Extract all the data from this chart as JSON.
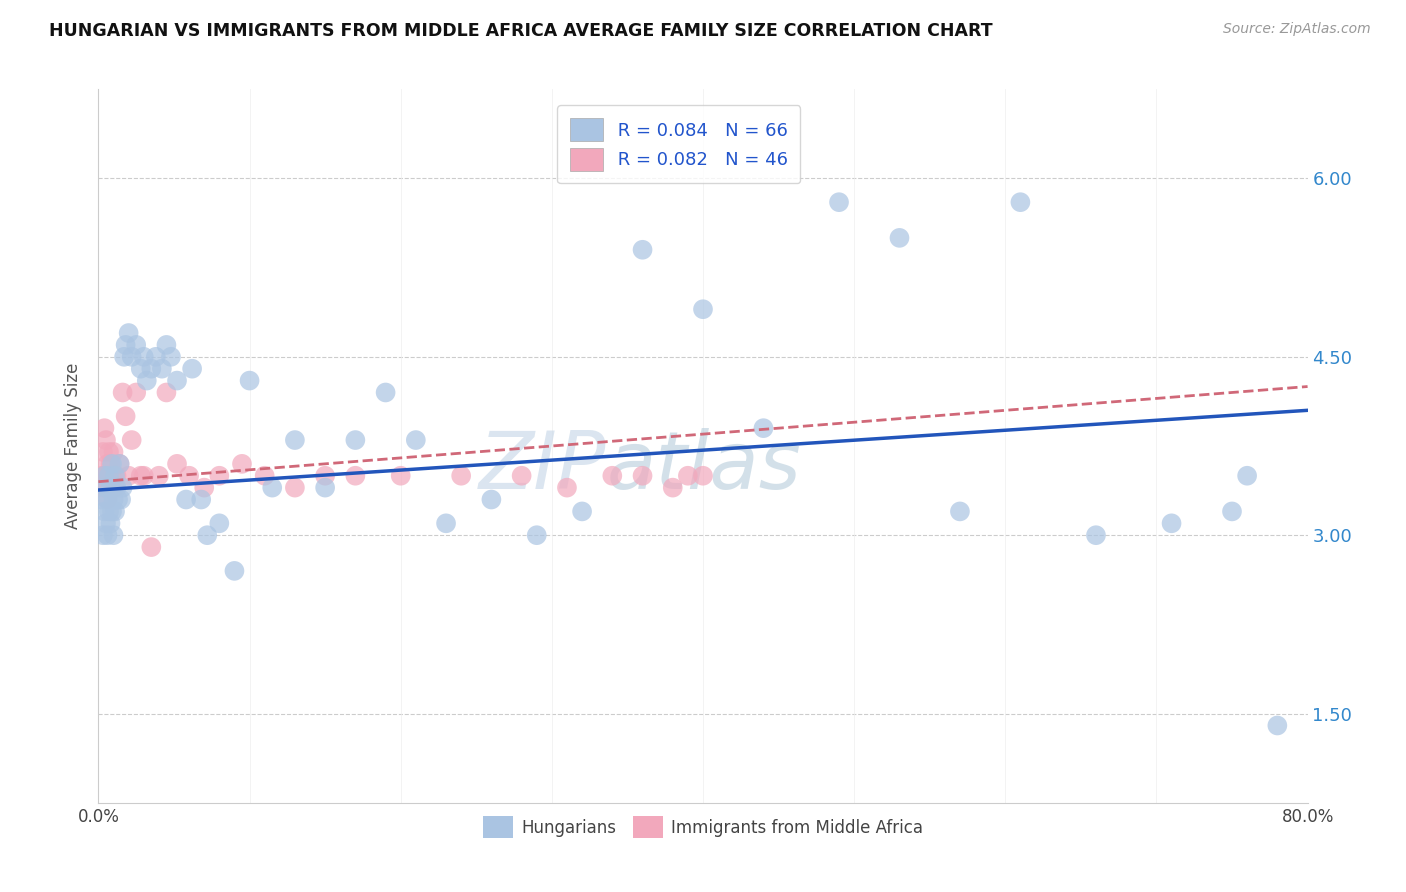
{
  "title": "HUNGARIAN VS IMMIGRANTS FROM MIDDLE AFRICA AVERAGE FAMILY SIZE CORRELATION CHART",
  "source": "Source: ZipAtlas.com",
  "ylabel": "Average Family Size",
  "xmin": 0.0,
  "xmax": 0.8,
  "ymin": 0.75,
  "ymax": 6.75,
  "yticks": [
    1.5,
    3.0,
    4.5,
    6.0
  ],
  "legend_r1": "R = 0.084",
  "legend_n1": "N = 66",
  "legend_r2": "R = 0.082",
  "legend_n2": "N = 46",
  "blue_color": "#aac4e2",
  "pink_color": "#f2a8bc",
  "trend_blue": "#2255bb",
  "trend_pink": "#d06878",
  "watermark_zip": "ZIP",
  "watermark_atlas": "atlas",
  "blue_scatter_x": [
    0.002,
    0.003,
    0.004,
    0.004,
    0.005,
    0.005,
    0.006,
    0.006,
    0.007,
    0.007,
    0.008,
    0.008,
    0.009,
    0.009,
    0.01,
    0.01,
    0.011,
    0.011,
    0.012,
    0.013,
    0.014,
    0.015,
    0.016,
    0.017,
    0.018,
    0.02,
    0.022,
    0.025,
    0.028,
    0.03,
    0.032,
    0.035,
    0.038,
    0.042,
    0.045,
    0.048,
    0.052,
    0.058,
    0.062,
    0.068,
    0.072,
    0.08,
    0.09,
    0.1,
    0.115,
    0.13,
    0.15,
    0.17,
    0.19,
    0.21,
    0.23,
    0.26,
    0.29,
    0.32,
    0.36,
    0.4,
    0.44,
    0.49,
    0.53,
    0.57,
    0.61,
    0.66,
    0.71,
    0.75,
    0.76,
    0.78
  ],
  "blue_scatter_y": [
    3.3,
    3.0,
    3.5,
    3.2,
    3.4,
    3.1,
    3.3,
    3.0,
    3.5,
    3.2,
    3.4,
    3.1,
    3.6,
    3.2,
    3.3,
    3.0,
    3.5,
    3.2,
    3.4,
    3.3,
    3.6,
    3.3,
    3.4,
    4.5,
    4.6,
    4.7,
    4.5,
    4.6,
    4.4,
    4.5,
    4.3,
    4.4,
    4.5,
    4.4,
    4.6,
    4.5,
    4.3,
    3.3,
    4.4,
    3.3,
    3.0,
    3.1,
    2.7,
    4.3,
    3.4,
    3.8,
    3.4,
    3.8,
    4.2,
    3.8,
    3.1,
    3.3,
    3.0,
    3.2,
    5.4,
    4.9,
    3.9,
    5.8,
    5.5,
    3.2,
    5.8,
    3.0,
    3.1,
    3.2,
    3.5,
    1.4
  ],
  "pink_scatter_x": [
    0.002,
    0.003,
    0.003,
    0.004,
    0.004,
    0.005,
    0.005,
    0.006,
    0.006,
    0.007,
    0.007,
    0.008,
    0.008,
    0.009,
    0.01,
    0.011,
    0.012,
    0.014,
    0.016,
    0.018,
    0.02,
    0.022,
    0.025,
    0.028,
    0.03,
    0.035,
    0.04,
    0.045,
    0.052,
    0.06,
    0.07,
    0.08,
    0.095,
    0.11,
    0.13,
    0.15,
    0.17,
    0.2,
    0.24,
    0.28,
    0.31,
    0.34,
    0.36,
    0.38,
    0.39,
    0.4
  ],
  "pink_scatter_y": [
    3.5,
    3.7,
    3.4,
    3.9,
    3.5,
    3.8,
    3.4,
    3.6,
    3.3,
    3.7,
    3.5,
    3.4,
    3.6,
    3.5,
    3.7,
    3.4,
    3.5,
    3.6,
    4.2,
    4.0,
    3.5,
    3.8,
    4.2,
    3.5,
    3.5,
    2.9,
    3.5,
    4.2,
    3.6,
    3.5,
    3.4,
    3.5,
    3.6,
    3.5,
    3.4,
    3.5,
    3.5,
    3.5,
    3.5,
    3.5,
    3.4,
    3.5,
    3.5,
    3.4,
    3.5,
    3.5
  ]
}
